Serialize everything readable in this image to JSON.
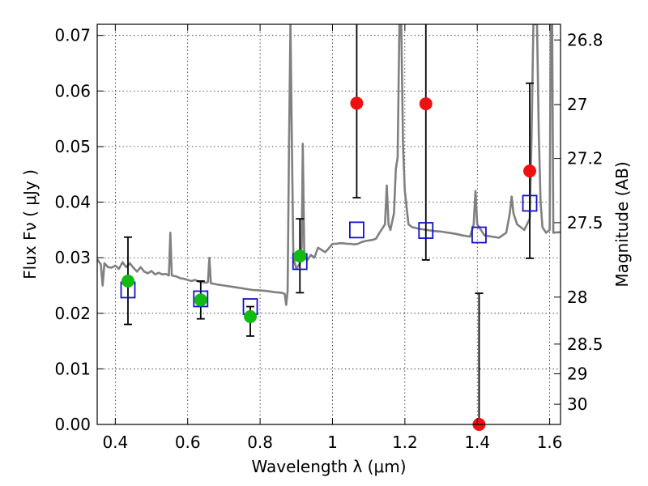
{
  "chart_data": {
    "type": "scatter",
    "xlabel": "Wavelength  λ (μm)",
    "ylabel": "Flux  Fν  ( μJy )",
    "y2label": "Magnitude (AB)",
    "xlim": [
      0.35,
      1.63
    ],
    "ylim": [
      0.0,
      0.072
    ],
    "grid": true,
    "x_ticks": [
      0.4,
      0.6,
      0.8,
      1.0,
      1.2,
      1.4,
      1.6
    ],
    "x_tick_labels": [
      "0.4",
      "0.6",
      "0.8",
      "1",
      "1.2",
      "1.4",
      "1.6"
    ],
    "y_ticks": [
      0.0,
      0.01,
      0.02,
      0.03,
      0.04,
      0.05,
      0.06,
      0.07
    ],
    "y_tick_labels": [
      "0.00",
      "0.01",
      "0.02",
      "0.03",
      "0.04",
      "0.05",
      "0.06",
      "0.07"
    ],
    "mag_ticks": [
      "26.8",
      "27",
      "27.2",
      "27.5",
      "28",
      "28.5",
      "29",
      "30"
    ],
    "colors": {
      "detected": "#11bb11",
      "upper": "#ee1111",
      "model": "#1111cc",
      "spectrum": "#808080",
      "errorbar": "#000000"
    },
    "detections": [
      {
        "x": 0.435,
        "y": 0.0258,
        "ylo": 0.018,
        "yhi": 0.0337
      },
      {
        "x": 0.636,
        "y": 0.0224,
        "ylo": 0.019,
        "yhi": 0.0258
      },
      {
        "x": 0.773,
        "y": 0.0194,
        "ylo": 0.0159,
        "yhi": 0.0212
      },
      {
        "x": 0.91,
        "y": 0.0303,
        "ylo": 0.0237,
        "yhi": 0.037
      }
    ],
    "nondetections": [
      {
        "x": 1.067,
        "y": 0.0578,
        "ylo": 0.0408,
        "yhi": 0.074
      },
      {
        "x": 1.258,
        "y": 0.0577,
        "ylo": 0.0296,
        "yhi": 0.074
      },
      {
        "x": 1.405,
        "y": 0.0,
        "ylo": 0.0,
        "yhi": 0.0236
      },
      {
        "x": 1.545,
        "y": 0.0456,
        "ylo": 0.0299,
        "yhi": 0.0614
      }
    ],
    "model_photometry": [
      {
        "x": 0.435,
        "y": 0.0242
      },
      {
        "x": 0.636,
        "y": 0.0226
      },
      {
        "x": 0.773,
        "y": 0.0212
      },
      {
        "x": 0.91,
        "y": 0.0293
      },
      {
        "x": 1.067,
        "y": 0.035
      },
      {
        "x": 1.258,
        "y": 0.0349
      },
      {
        "x": 1.405,
        "y": 0.0341
      },
      {
        "x": 1.545,
        "y": 0.0398
      }
    ],
    "model_spectrum": [
      [
        0.35,
        0.0297
      ],
      [
        0.36,
        0.0288
      ],
      [
        0.365,
        0.025
      ],
      [
        0.37,
        0.029
      ],
      [
        0.38,
        0.0283
      ],
      [
        0.39,
        0.0282
      ],
      [
        0.4,
        0.0286
      ],
      [
        0.41,
        0.028
      ],
      [
        0.42,
        0.0292
      ],
      [
        0.43,
        0.0283
      ],
      [
        0.44,
        0.029
      ],
      [
        0.45,
        0.0282
      ],
      [
        0.46,
        0.0275
      ],
      [
        0.47,
        0.0283
      ],
      [
        0.48,
        0.0275
      ],
      [
        0.49,
        0.0272
      ],
      [
        0.5,
        0.0276
      ],
      [
        0.51,
        0.027
      ],
      [
        0.52,
        0.0273
      ],
      [
        0.53,
        0.027
      ],
      [
        0.54,
        0.0271
      ],
      [
        0.548,
        0.0268
      ],
      [
        0.552,
        0.0345
      ],
      [
        0.556,
        0.0268
      ],
      [
        0.57,
        0.0266
      ],
      [
        0.58,
        0.0263
      ],
      [
        0.59,
        0.0262
      ],
      [
        0.6,
        0.026
      ],
      [
        0.61,
        0.0258
      ],
      [
        0.62,
        0.026
      ],
      [
        0.63,
        0.0257
      ],
      [
        0.64,
        0.0256
      ],
      [
        0.65,
        0.0255
      ],
      [
        0.656,
        0.0256
      ],
      [
        0.66,
        0.03
      ],
      [
        0.664,
        0.0254
      ],
      [
        0.68,
        0.0252
      ],
      [
        0.7,
        0.025
      ],
      [
        0.72,
        0.0248
      ],
      [
        0.74,
        0.0246
      ],
      [
        0.76,
        0.0244
      ],
      [
        0.78,
        0.0242
      ],
      [
        0.8,
        0.0241
      ],
      [
        0.82,
        0.024
      ],
      [
        0.84,
        0.0238
      ],
      [
        0.86,
        0.0237
      ],
      [
        0.868,
        0.0235
      ],
      [
        0.872,
        0.0215
      ],
      [
        0.876,
        0.024
      ],
      [
        0.88,
        0.05
      ],
      [
        0.884,
        0.072
      ],
      [
        0.888,
        0.05
      ],
      [
        0.892,
        0.03
      ],
      [
        0.9,
        0.028
      ],
      [
        0.91,
        0.029
      ],
      [
        0.915,
        0.032
      ],
      [
        0.918,
        0.0505
      ],
      [
        0.922,
        0.031
      ],
      [
        0.93,
        0.0295
      ],
      [
        0.94,
        0.0305
      ],
      [
        0.95,
        0.03
      ],
      [
        0.96,
        0.0318
      ],
      [
        0.97,
        0.0314
      ],
      [
        0.98,
        0.031
      ],
      [
        0.99,
        0.0317
      ],
      [
        1.0,
        0.0325
      ],
      [
        1.01,
        0.0325
      ],
      [
        1.02,
        0.0326
      ],
      [
        1.03,
        0.0326
      ],
      [
        1.04,
        0.0325
      ],
      [
        1.05,
        0.0325
      ],
      [
        1.06,
        0.0324
      ],
      [
        1.07,
        0.0325
      ],
      [
        1.08,
        0.0328
      ],
      [
        1.09,
        0.033
      ],
      [
        1.1,
        0.0331
      ],
      [
        1.11,
        0.0332
      ],
      [
        1.12,
        0.0334
      ],
      [
        1.13,
        0.0345
      ],
      [
        1.145,
        0.036
      ],
      [
        1.15,
        0.043
      ],
      [
        1.155,
        0.036
      ],
      [
        1.16,
        0.035
      ],
      [
        1.17,
        0.038
      ],
      [
        1.175,
        0.046
      ],
      [
        1.18,
        0.048
      ],
      [
        1.185,
        0.072
      ],
      [
        1.19,
        0.072
      ],
      [
        1.195,
        0.05
      ],
      [
        1.2,
        0.042
      ],
      [
        1.21,
        0.036
      ],
      [
        1.22,
        0.0355
      ],
      [
        1.24,
        0.0352
      ],
      [
        1.26,
        0.035
      ],
      [
        1.28,
        0.0348
      ],
      [
        1.3,
        0.0347
      ],
      [
        1.32,
        0.0345
      ],
      [
        1.34,
        0.0343
      ],
      [
        1.36,
        0.034
      ],
      [
        1.38,
        0.0338
      ],
      [
        1.39,
        0.036
      ],
      [
        1.395,
        0.042
      ],
      [
        1.4,
        0.036
      ],
      [
        1.42,
        0.034
      ],
      [
        1.44,
        0.0338
      ],
      [
        1.46,
        0.0336
      ],
      [
        1.48,
        0.0345
      ],
      [
        1.49,
        0.038
      ],
      [
        1.495,
        0.041
      ],
      [
        1.5,
        0.038
      ],
      [
        1.51,
        0.036
      ],
      [
        1.53,
        0.035
      ],
      [
        1.545,
        0.037
      ],
      [
        1.55,
        0.052
      ],
      [
        1.555,
        0.072
      ],
      [
        1.565,
        0.072
      ],
      [
        1.57,
        0.052
      ],
      [
        1.575,
        0.04
      ],
      [
        1.58,
        0.0355
      ],
      [
        1.59,
        0.0345
      ],
      [
        1.6,
        0.035
      ],
      [
        1.603,
        0.072
      ],
      [
        1.607,
        0.072
      ],
      [
        1.61,
        0.0345
      ],
      [
        1.63,
        0.0346
      ]
    ]
  }
}
